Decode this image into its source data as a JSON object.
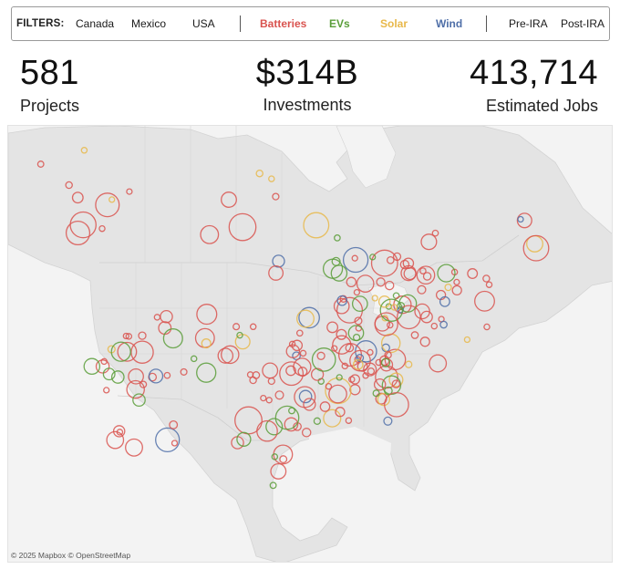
{
  "filters": {
    "label": "FILTERS:",
    "countries": [
      "Canada",
      "Mexico",
      "USA"
    ],
    "sectors": [
      {
        "label": "Batteries",
        "color": "#d9534f"
      },
      {
        "label": "EVs",
        "color": "#5a9e3a"
      },
      {
        "label": "Solar",
        "color": "#e8b84a"
      },
      {
        "label": "Wind",
        "color": "#4f6fa8"
      }
    ],
    "periods": [
      "Pre-IRA",
      "Post-IRA"
    ]
  },
  "kpis": {
    "projects_value": "581",
    "projects_label": "Projects",
    "investments_value": "$314B",
    "investments_label": "Investments",
    "jobs_value": "413,714",
    "jobs_label": "Estimated Jobs"
  },
  "map": {
    "attribution": "© 2025 Mapbox © OpenStreetMap",
    "land_color": "#e4e4e4",
    "water_color": "#f3f3f3",
    "border_color": "#c9c9c9"
  }
}
